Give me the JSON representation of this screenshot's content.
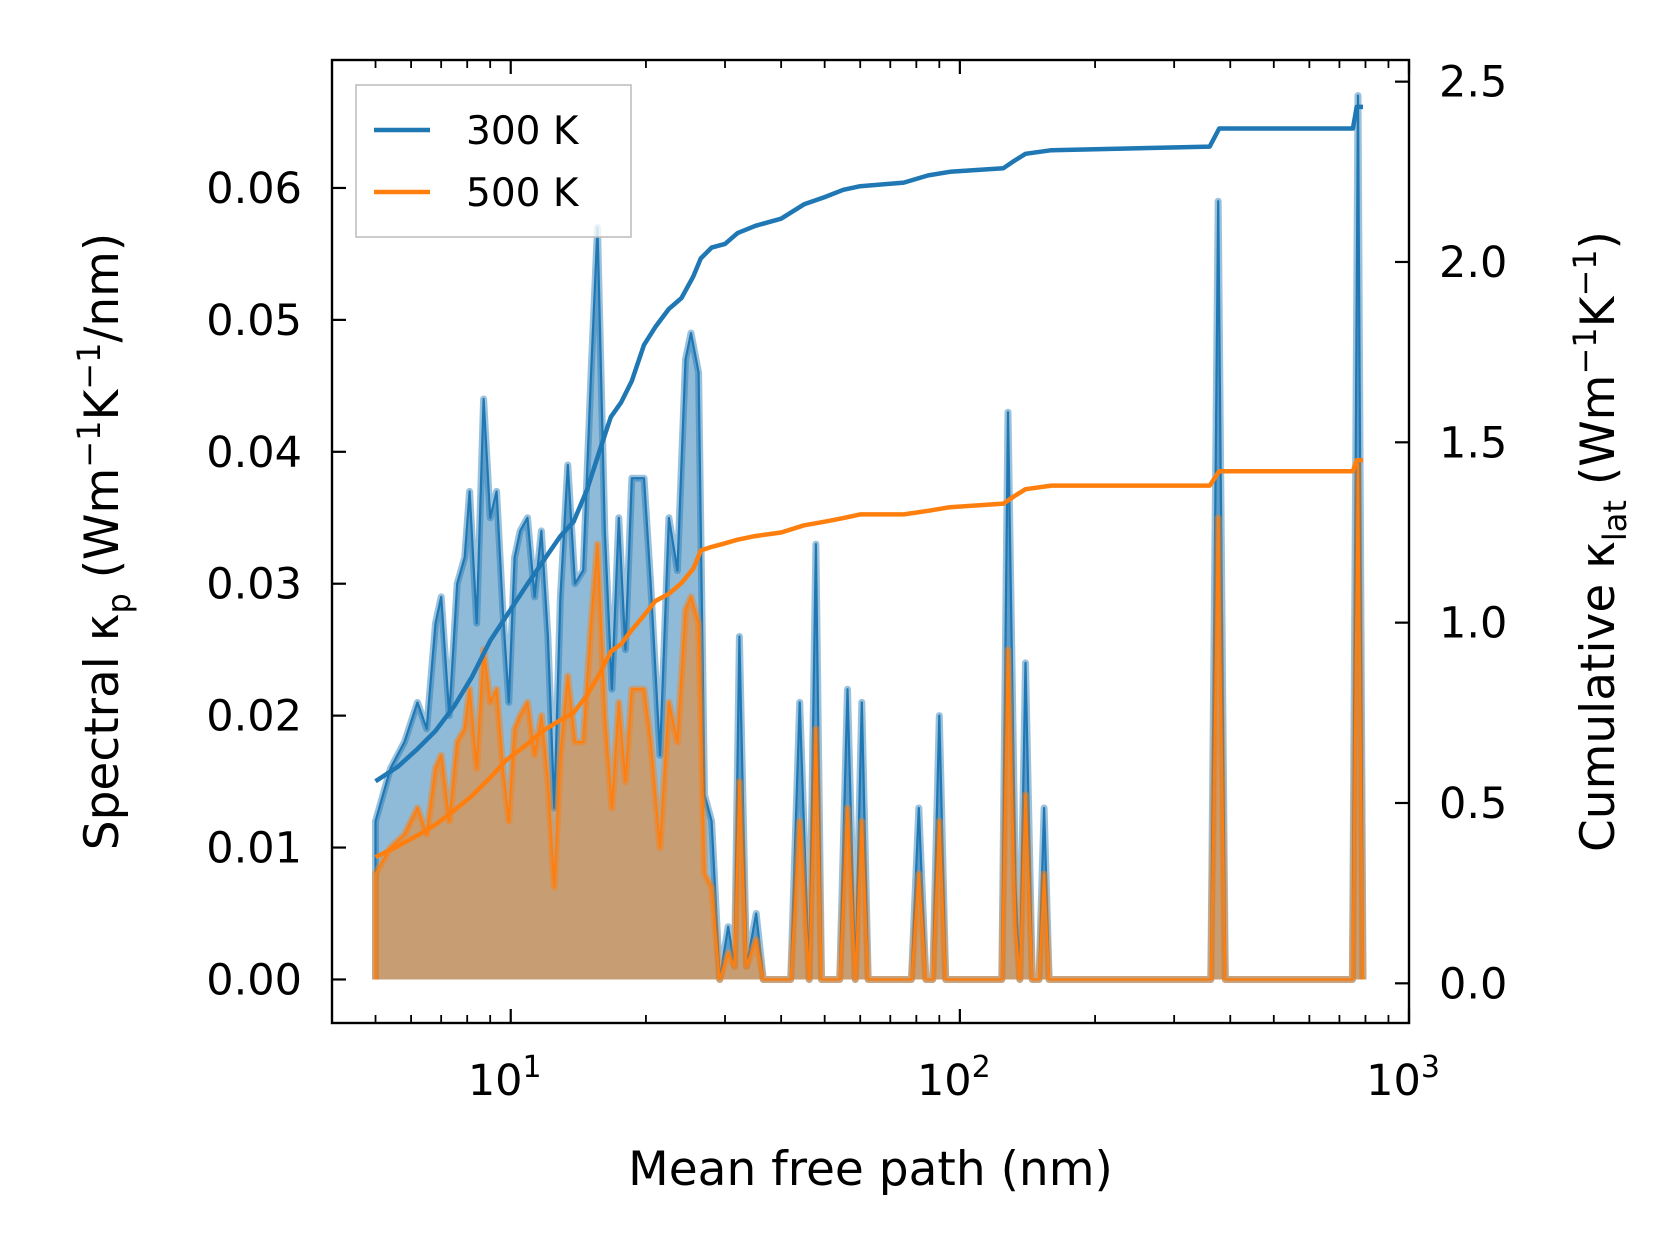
{
  "chart_data": {
    "type": "line",
    "x_scale": "log",
    "xlabel": "Mean free path (nm)",
    "xlim": [
      4.0,
      1000
    ],
    "x_ticks": [
      {
        "value": 10,
        "base": "10",
        "exp": "1"
      },
      {
        "value": 100,
        "base": "10",
        "exp": "2"
      },
      {
        "value": 1000,
        "base": "10",
        "exp": "3"
      }
    ],
    "y_left": {
      "label_parts": [
        "Spectral κ",
        "p",
        " (Wm",
        "−1",
        "K",
        "−1",
        "/nm)"
      ],
      "ylim": [
        -0.0033,
        0.0697
      ],
      "ticks": [
        0.0,
        0.01,
        0.02,
        0.03,
        0.04,
        0.05,
        0.06
      ],
      "tick_labels": [
        "0.00",
        "0.01",
        "0.02",
        "0.03",
        "0.04",
        "0.05",
        "0.06"
      ]
    },
    "y_right": {
      "label_parts": [
        "Cumulative κ",
        "lat",
        " (Wm",
        "−1",
        "K",
        "−1",
        ")"
      ],
      "ylim": [
        -0.11,
        2.56
      ],
      "ticks": [
        0.0,
        0.5,
        1.0,
        1.5,
        2.0,
        2.5
      ],
      "tick_labels": [
        "0.0",
        "0.5",
        "1.0",
        "1.5",
        "2.0",
        "2.5"
      ]
    },
    "legend": {
      "position": "top-left",
      "entries": [
        "300 K",
        "500 K"
      ]
    },
    "series": [
      {
        "name": "300 K",
        "color": "#1f77b4",
        "spectral": [
          [
            5,
            0.0
          ],
          [
            5,
            0.012
          ],
          [
            5.4,
            0.016
          ],
          [
            5.8,
            0.018
          ],
          [
            6.2,
            0.021
          ],
          [
            6.5,
            0.019
          ],
          [
            6.8,
            0.027
          ],
          [
            7.0,
            0.029
          ],
          [
            7.3,
            0.02
          ],
          [
            7.6,
            0.03
          ],
          [
            7.9,
            0.032
          ],
          [
            8.1,
            0.037
          ],
          [
            8.4,
            0.027
          ],
          [
            8.7,
            0.044
          ],
          [
            9.0,
            0.035
          ],
          [
            9.3,
            0.037
          ],
          [
            9.6,
            0.028
          ],
          [
            9.9,
            0.021
          ],
          [
            10.2,
            0.032
          ],
          [
            10.5,
            0.034
          ],
          [
            10.9,
            0.035
          ],
          [
            11.3,
            0.029
          ],
          [
            11.7,
            0.034
          ],
          [
            12.1,
            0.026
          ],
          [
            12.5,
            0.013
          ],
          [
            12.9,
            0.029
          ],
          [
            13.4,
            0.039
          ],
          [
            13.9,
            0.03
          ],
          [
            14.5,
            0.031
          ],
          [
            15.1,
            0.046
          ],
          [
            15.6,
            0.057
          ],
          [
            16.2,
            0.034
          ],
          [
            16.8,
            0.022
          ],
          [
            17.4,
            0.035
          ],
          [
            18.0,
            0.025
          ],
          [
            18.6,
            0.038
          ],
          [
            19.8,
            0.038
          ],
          [
            20.5,
            0.03
          ],
          [
            21.5,
            0.017
          ],
          [
            22.5,
            0.035
          ],
          [
            23.5,
            0.031
          ],
          [
            24.5,
            0.047
          ],
          [
            25.2,
            0.049
          ],
          [
            26.2,
            0.046
          ],
          [
            27.0,
            0.014
          ],
          [
            28.0,
            0.012
          ],
          [
            29.2,
            0.0
          ],
          [
            30.5,
            0.004
          ],
          [
            31.5,
            0.001
          ],
          [
            32.3,
            0.026
          ],
          [
            33.5,
            0.001
          ],
          [
            35.2,
            0.005
          ],
          [
            36.5,
            0.0
          ],
          [
            42.0,
            0.0
          ],
          [
            44.0,
            0.021
          ],
          [
            46.2,
            0.0
          ],
          [
            47.8,
            0.033
          ],
          [
            49.2,
            0.0
          ],
          [
            54.0,
            0.0
          ],
          [
            56.2,
            0.022
          ],
          [
            58.5,
            0.0
          ],
          [
            60.5,
            0.021
          ],
          [
            62.5,
            0.0
          ],
          [
            78.0,
            0.0
          ],
          [
            81.0,
            0.013
          ],
          [
            84.0,
            0.0
          ],
          [
            87.0,
            0.0
          ],
          [
            90.0,
            0.02
          ],
          [
            93.0,
            0.0
          ],
          [
            124.0,
            0.0
          ],
          [
            128.0,
            0.043
          ],
          [
            133.0,
            0.007
          ],
          [
            136.0,
            0.0
          ],
          [
            140.0,
            0.024
          ],
          [
            145.0,
            0.0
          ],
          [
            150.0,
            0.0
          ],
          [
            154.0,
            0.013
          ],
          [
            158.0,
            0.0
          ],
          [
            362.0,
            0.0
          ],
          [
            376.0,
            0.059
          ],
          [
            390.0,
            0.0
          ],
          [
            748.0,
            0.0
          ],
          [
            770.0,
            0.067
          ],
          [
            790.0,
            0.0
          ]
        ],
        "cumulative": [
          [
            5,
            0.56
          ],
          [
            5.6,
            0.6
          ],
          [
            6.2,
            0.65
          ],
          [
            6.8,
            0.7
          ],
          [
            7.5,
            0.77
          ],
          [
            8.2,
            0.85
          ],
          [
            9.0,
            0.95
          ],
          [
            9.8,
            1.02
          ],
          [
            10.8,
            1.1
          ],
          [
            11.8,
            1.17
          ],
          [
            12.9,
            1.24
          ],
          [
            13.8,
            1.28
          ],
          [
            14.8,
            1.37
          ],
          [
            15.8,
            1.48
          ],
          [
            16.7,
            1.57
          ],
          [
            17.6,
            1.61
          ],
          [
            18.6,
            1.67
          ],
          [
            19.8,
            1.77
          ],
          [
            21.0,
            1.82
          ],
          [
            22.5,
            1.87
          ],
          [
            24.0,
            1.9
          ],
          [
            25.5,
            1.96
          ],
          [
            26.5,
            2.01
          ],
          [
            28.0,
            2.04
          ],
          [
            30.0,
            2.05
          ],
          [
            32.0,
            2.08
          ],
          [
            35.0,
            2.1
          ],
          [
            40.0,
            2.12
          ],
          [
            45.0,
            2.16
          ],
          [
            50.0,
            2.18
          ],
          [
            55.0,
            2.2
          ],
          [
            60.0,
            2.21
          ],
          [
            75.0,
            2.22
          ],
          [
            85.0,
            2.24
          ],
          [
            95.0,
            2.25
          ],
          [
            125.0,
            2.26
          ],
          [
            132.0,
            2.28
          ],
          [
            140.0,
            2.3
          ],
          [
            160.0,
            2.31
          ],
          [
            360.0,
            2.32
          ],
          [
            378.0,
            2.37
          ],
          [
            750.0,
            2.37
          ],
          [
            765.0,
            2.43
          ],
          [
            790.0,
            2.43
          ]
        ]
      },
      {
        "name": "500 K",
        "color": "#ff7f0e",
        "spectral": [
          [
            5,
            0.0
          ],
          [
            5,
            0.008
          ],
          [
            5.4,
            0.01
          ],
          [
            5.8,
            0.011
          ],
          [
            6.2,
            0.013
          ],
          [
            6.5,
            0.011
          ],
          [
            6.8,
            0.016
          ],
          [
            7.0,
            0.017
          ],
          [
            7.3,
            0.012
          ],
          [
            7.6,
            0.018
          ],
          [
            7.9,
            0.019
          ],
          [
            8.1,
            0.022
          ],
          [
            8.4,
            0.016
          ],
          [
            8.7,
            0.025
          ],
          [
            9.0,
            0.021
          ],
          [
            9.3,
            0.022
          ],
          [
            9.6,
            0.016
          ],
          [
            9.9,
            0.012
          ],
          [
            10.2,
            0.019
          ],
          [
            10.5,
            0.02
          ],
          [
            10.9,
            0.021
          ],
          [
            11.3,
            0.017
          ],
          [
            11.7,
            0.02
          ],
          [
            12.1,
            0.015
          ],
          [
            12.5,
            0.007
          ],
          [
            12.9,
            0.017
          ],
          [
            13.4,
            0.023
          ],
          [
            13.9,
            0.018
          ],
          [
            14.5,
            0.018
          ],
          [
            15.1,
            0.027
          ],
          [
            15.6,
            0.033
          ],
          [
            16.2,
            0.02
          ],
          [
            16.8,
            0.013
          ],
          [
            17.4,
            0.021
          ],
          [
            18.0,
            0.015
          ],
          [
            18.6,
            0.022
          ],
          [
            19.8,
            0.022
          ],
          [
            20.5,
            0.018
          ],
          [
            21.5,
            0.01
          ],
          [
            22.5,
            0.021
          ],
          [
            23.5,
            0.018
          ],
          [
            24.5,
            0.028
          ],
          [
            25.2,
            0.029
          ],
          [
            26.2,
            0.027
          ],
          [
            27.0,
            0.008
          ],
          [
            28.0,
            0.007
          ],
          [
            29.2,
            0.0
          ],
          [
            30.5,
            0.002
          ],
          [
            31.5,
            0.001
          ],
          [
            32.3,
            0.015
          ],
          [
            33.5,
            0.001
          ],
          [
            35.2,
            0.003
          ],
          [
            36.5,
            0.0
          ],
          [
            42.0,
            0.0
          ],
          [
            44.0,
            0.012
          ],
          [
            46.2,
            0.0
          ],
          [
            47.8,
            0.019
          ],
          [
            49.2,
            0.0
          ],
          [
            54.0,
            0.0
          ],
          [
            56.2,
            0.013
          ],
          [
            58.5,
            0.0
          ],
          [
            60.5,
            0.012
          ],
          [
            62.5,
            0.0
          ],
          [
            78.0,
            0.0
          ],
          [
            81.0,
            0.008
          ],
          [
            84.0,
            0.0
          ],
          [
            87.0,
            0.0
          ],
          [
            90.0,
            0.012
          ],
          [
            93.0,
            0.0
          ],
          [
            124.0,
            0.0
          ],
          [
            128.0,
            0.025
          ],
          [
            133.0,
            0.004
          ],
          [
            136.0,
            0.0
          ],
          [
            140.0,
            0.014
          ],
          [
            145.0,
            0.0
          ],
          [
            150.0,
            0.0
          ],
          [
            154.0,
            0.008
          ],
          [
            158.0,
            0.0
          ],
          [
            362.0,
            0.0
          ],
          [
            376.0,
            0.035
          ],
          [
            390.0,
            0.0
          ],
          [
            748.0,
            0.0
          ],
          [
            770.0,
            0.039
          ],
          [
            790.0,
            0.0
          ]
        ],
        "cumulative": [
          [
            5,
            0.35
          ],
          [
            5.6,
            0.38
          ],
          [
            6.2,
            0.41
          ],
          [
            6.8,
            0.44
          ],
          [
            7.5,
            0.48
          ],
          [
            8.2,
            0.52
          ],
          [
            9.0,
            0.57
          ],
          [
            9.8,
            0.62
          ],
          [
            10.8,
            0.66
          ],
          [
            11.8,
            0.7
          ],
          [
            12.9,
            0.73
          ],
          [
            13.8,
            0.75
          ],
          [
            14.8,
            0.8
          ],
          [
            15.8,
            0.86
          ],
          [
            16.7,
            0.92
          ],
          [
            17.6,
            0.94
          ],
          [
            18.6,
            0.98
          ],
          [
            19.8,
            1.02
          ],
          [
            21.0,
            1.06
          ],
          [
            22.5,
            1.08
          ],
          [
            24.0,
            1.11
          ],
          [
            25.5,
            1.15
          ],
          [
            26.5,
            1.2
          ],
          [
            28.0,
            1.21
          ],
          [
            30.0,
            1.22
          ],
          [
            32.0,
            1.23
          ],
          [
            35.0,
            1.24
          ],
          [
            40.0,
            1.25
          ],
          [
            45.0,
            1.27
          ],
          [
            50.0,
            1.28
          ],
          [
            55.0,
            1.29
          ],
          [
            60.0,
            1.3
          ],
          [
            75.0,
            1.3
          ],
          [
            85.0,
            1.31
          ],
          [
            95.0,
            1.32
          ],
          [
            125.0,
            1.33
          ],
          [
            132.0,
            1.35
          ],
          [
            140.0,
            1.37
          ],
          [
            160.0,
            1.38
          ],
          [
            360.0,
            1.38
          ],
          [
            378.0,
            1.42
          ],
          [
            750.0,
            1.42
          ],
          [
            765.0,
            1.45
          ],
          [
            790.0,
            1.45
          ]
        ]
      }
    ]
  }
}
